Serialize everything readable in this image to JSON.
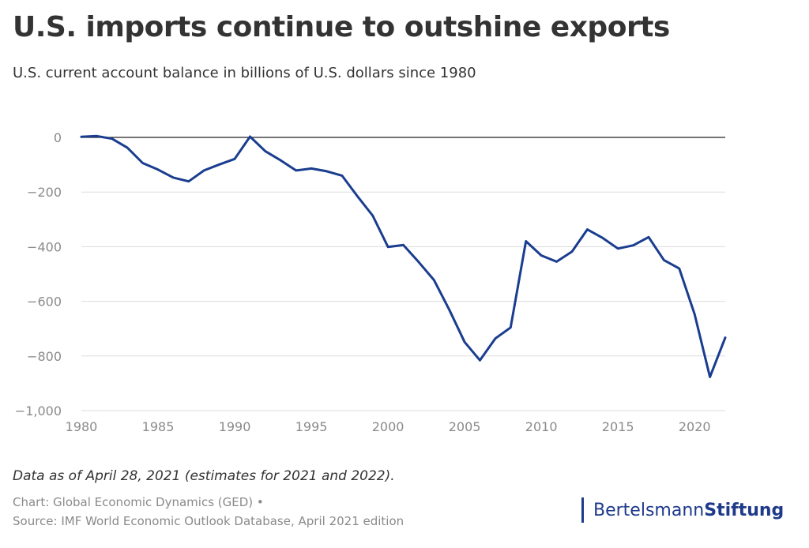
{
  "header": {
    "title": "U.S. imports continue to outshine exports",
    "subtitle": "U.S. current account balance in billions of U.S. dollars since 1980"
  },
  "footer": {
    "note": "Data as of April 28, 2021 (estimates for 2021 and 2022).",
    "credit_line1": "Chart: Global Economic Dynamics (GED) •",
    "credit_line2": "Source: IMF World Economic Outlook Database, April 2021 edition",
    "brand_part1": "Bertelsmann",
    "brand_part2": "Stiftung"
  },
  "colors": {
    "line": "#1a3d8f",
    "zero_line": "#222222",
    "grid": "#dddddd",
    "tick_text": "#8a8a8a",
    "brand": "#1e3a8a"
  },
  "chart_data": {
    "type": "line",
    "title": "U.S. imports continue to outshine exports",
    "subtitle": "U.S. current account balance in billions of U.S. dollars since 1980",
    "xlabel": "",
    "ylabel": "",
    "xlim": [
      1980,
      2022
    ],
    "ylim": [
      -1000,
      0
    ],
    "grid": true,
    "x_ticks": [
      1980,
      1985,
      1990,
      1995,
      2000,
      2005,
      2010,
      2015,
      2020
    ],
    "y_ticks": [
      0,
      -200,
      -400,
      -600,
      -800,
      -1000
    ],
    "y_tick_labels": [
      "0",
      "−200",
      "−400",
      "−600",
      "−800",
      "−1,000"
    ],
    "x": [
      1980,
      1981,
      1982,
      1983,
      1984,
      1985,
      1986,
      1987,
      1988,
      1989,
      1990,
      1991,
      1992,
      1993,
      1994,
      1995,
      1996,
      1997,
      1998,
      1999,
      2000,
      2001,
      2002,
      2003,
      2004,
      2005,
      2006,
      2007,
      2008,
      2009,
      2010,
      2011,
      2012,
      2013,
      2014,
      2015,
      2016,
      2017,
      2018,
      2019,
      2020,
      2021,
      2022
    ],
    "series": [
      {
        "values": [
          2,
          5,
          -5,
          -38,
          -94,
          -118,
          -147,
          -161,
          -121,
          -99,
          -79,
          3,
          -51,
          -84,
          -121,
          -114,
          -124,
          -140,
          -215,
          -286,
          -401,
          -394,
          -456,
          -522,
          -631,
          -749,
          -816,
          -736,
          -696,
          -380,
          -432,
          -455,
          -418,
          -337,
          -368,
          -407,
          -395,
          -365,
          -449,
          -480,
          -647,
          -877,
          -733
        ]
      }
    ]
  }
}
